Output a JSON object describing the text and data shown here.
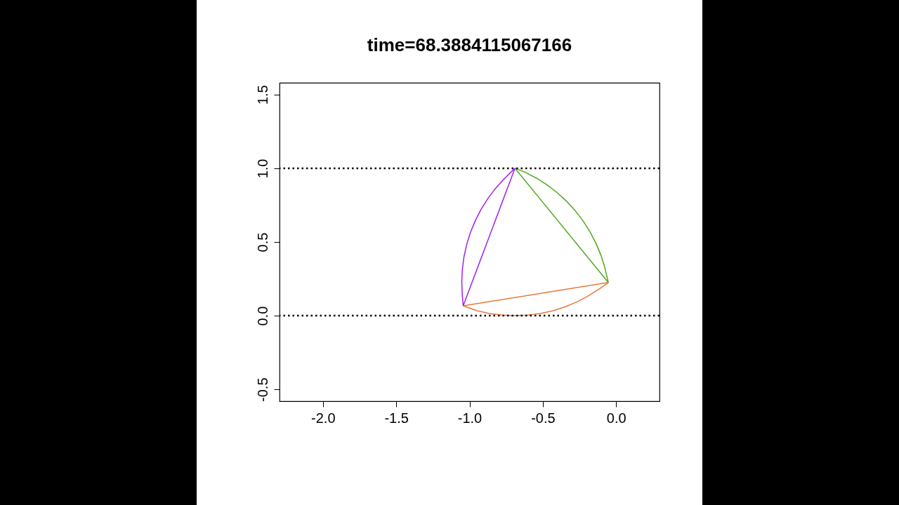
{
  "chart_data": {
    "type": "line",
    "title": "time=68.3884115067166",
    "xlim": [
      -2.296,
      0.296
    ],
    "ylim": [
      -0.58,
      1.58
    ],
    "xticks": [
      {
        "value": -2,
        "label": "-2.0"
      },
      {
        "value": -1.5,
        "label": "-1.5"
      },
      {
        "value": -1,
        "label": "-1.0"
      },
      {
        "value": -0.5,
        "label": "-0.5"
      },
      {
        "value": 0,
        "label": "0.0"
      }
    ],
    "yticks": [
      {
        "value": -0.5,
        "label": "-0.5"
      },
      {
        "value": 0,
        "label": "0.0"
      },
      {
        "value": 0.5,
        "label": "0.5"
      },
      {
        "value": 1,
        "label": "1.0"
      },
      {
        "value": 1.5,
        "label": "1.5"
      }
    ],
    "grid": false,
    "line_style": "solid",
    "ref_lines": [
      {
        "axis": "y",
        "value": 0,
        "color": "#000000",
        "line_style": "dotted"
      },
      {
        "axis": "y",
        "value": 1,
        "color": "#000000",
        "line_style": "dotted"
      }
    ],
    "series": [
      {
        "color": "#e8793a",
        "x": [
          -1.043,
          -0.949,
          -0.864,
          -0.777,
          -0.69,
          -0.603,
          -0.516,
          -0.431,
          -0.348,
          -0.267,
          -0.19,
          -0.116,
          -0.053
        ],
        "values": [
          0.067,
          0.034,
          0.015,
          0.004,
          0,
          0.004,
          0.015,
          0.034,
          0.06,
          0.094,
          0.134,
          0.181,
          0.225
        ]
      },
      {
        "color": "#e8793a",
        "x": [
          -1.043,
          -0.053
        ],
        "values": [
          0.067,
          0.225
        ]
      },
      {
        "color": "#4fa81a",
        "x": [
          -0.053,
          -0.077,
          -0.103,
          -0.137,
          -0.177,
          -0.224,
          -0.277,
          -0.336,
          -0.4,
          -0.469,
          -0.543,
          -0.62,
          -0.69
        ],
        "values": [
          0.225,
          0.326,
          0.409,
          0.49,
          0.567,
          0.641,
          0.71,
          0.774,
          0.833,
          0.886,
          0.933,
          0.973,
          1
        ]
      },
      {
        "color": "#4fa81a",
        "x": [
          -0.69,
          -0.053
        ],
        "values": [
          1,
          0.225
        ]
      },
      {
        "color": "#a020f0",
        "x": [
          -0.69,
          -0.76,
          -0.819,
          -0.872,
          -0.919,
          -0.959,
          -0.993,
          -1.019,
          -1.038,
          -1.049,
          -1.053,
          -1.049,
          -1.043
        ],
        "values": [
          1,
          0.932,
          0.868,
          0.799,
          0.725,
          0.648,
          0.567,
          0.484,
          0.399,
          0.312,
          0.225,
          0.138,
          0.067
        ]
      },
      {
        "color": "#a020f0",
        "x": [
          -1.043,
          -0.69
        ],
        "values": [
          0.067,
          1
        ]
      }
    ]
  }
}
